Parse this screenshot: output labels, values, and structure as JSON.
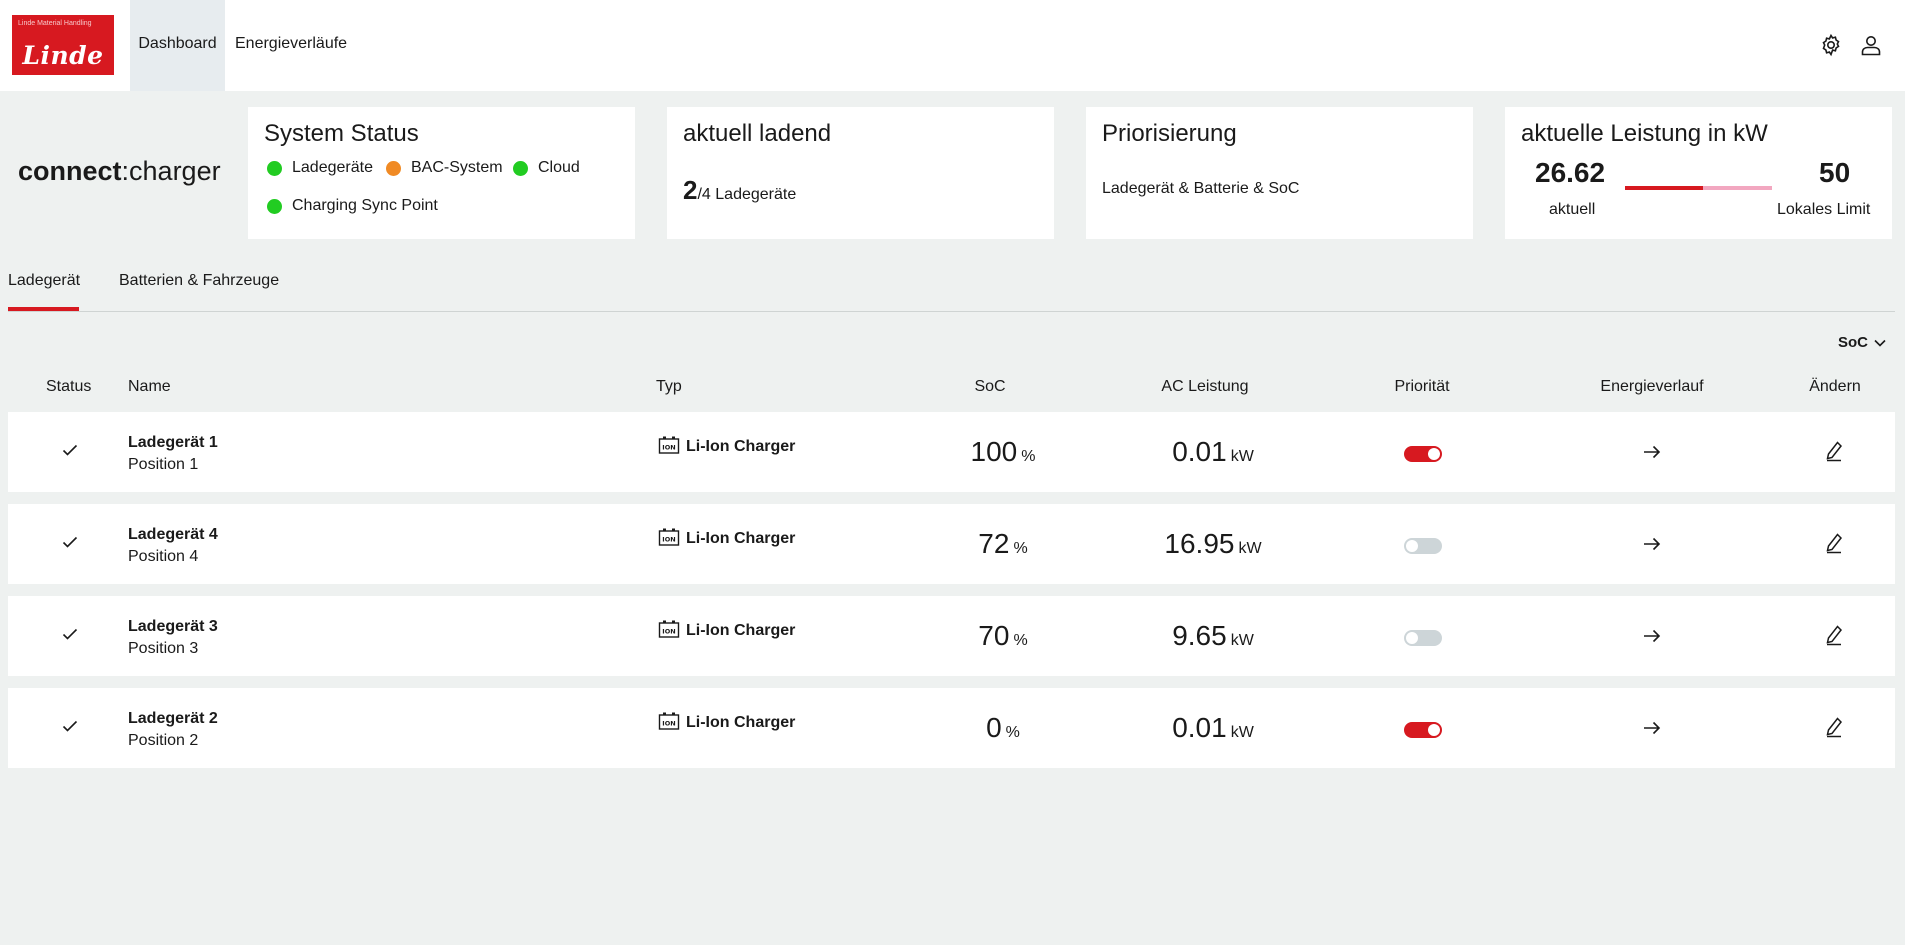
{
  "topbar": {
    "logo_small": "Linde Material Handling",
    "logo_brand": "Linde",
    "nav": [
      {
        "label": "Dashboard",
        "active": true
      },
      {
        "label": "Energieverläufe",
        "active": false
      }
    ],
    "icons": [
      "gear-icon",
      "user-icon"
    ]
  },
  "app_title": {
    "strong": "connect",
    "rest": ":charger"
  },
  "system_status": {
    "title": "System Status",
    "items": [
      {
        "label": "Ladegeräte",
        "color": "#22cc22"
      },
      {
        "label": "BAC-System",
        "color": "#f08a24"
      },
      {
        "label": "Cloud",
        "color": "#22cc22"
      },
      {
        "label": "Charging Sync Point",
        "color": "#22cc22"
      }
    ]
  },
  "charging_now": {
    "title": "aktuell ladend",
    "active": "2",
    "total": "/4",
    "label": "Ladegeräte"
  },
  "prioritization": {
    "title": "Priorisierung",
    "text": "Ladegerät & Batterie & SoC"
  },
  "power": {
    "title": "aktuelle Leistung in kW",
    "current_value": "26.62",
    "current_label": "aktuell",
    "limit_value": "50",
    "limit_label": "Lokales Limit",
    "fraction": 0.532
  },
  "tabs": [
    {
      "label": "Ladegerät",
      "active": true
    },
    {
      "label": "Batterien & Fahrzeuge",
      "active": false
    }
  ],
  "sort": {
    "label": "SoC"
  },
  "table": {
    "headers": {
      "status": "Status",
      "name": "Name",
      "typ": "Typ",
      "soc": "SoC",
      "ac": "AC Leistung",
      "priority": "Priorität",
      "energy": "Energieverlauf",
      "edit": "Ändern"
    },
    "rows": [
      {
        "name": "Ladegerät 1",
        "position": "Position 1",
        "typ": "Li-Ion Charger",
        "soc": "100",
        "soc_unit": "%",
        "ac": "0.01",
        "ac_unit": "kW",
        "priority": true
      },
      {
        "name": "Ladegerät 4",
        "position": "Position 4",
        "typ": "Li-Ion Charger",
        "soc": "72",
        "soc_unit": "%",
        "ac": "16.95",
        "ac_unit": "kW",
        "priority": false
      },
      {
        "name": "Ladegerät 3",
        "position": "Position 3",
        "typ": "Li-Ion Charger",
        "soc": "70",
        "soc_unit": "%",
        "ac": "9.65",
        "ac_unit": "kW",
        "priority": false
      },
      {
        "name": "Ladegerät 2",
        "position": "Position 2",
        "typ": "Li-Ion Charger",
        "soc": "0",
        "soc_unit": "%",
        "ac": "0.01",
        "ac_unit": "kW",
        "priority": true
      }
    ]
  },
  "colors": {
    "accent": "#d71920",
    "toggle_off": "#cdd5d8",
    "bar_track": "#f2a7c0"
  }
}
